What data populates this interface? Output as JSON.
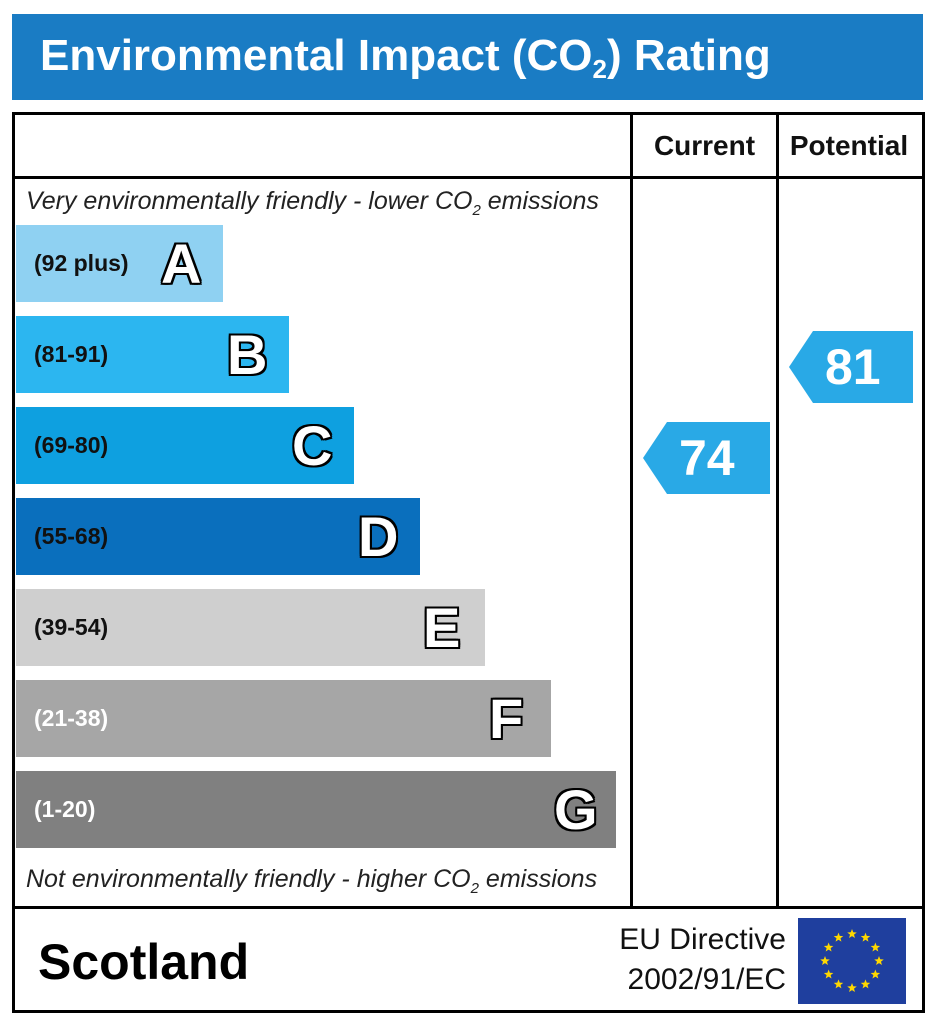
{
  "header": {
    "title_pre": "Environmental Impact (CO",
    "title_sub": "2",
    "title_post": ") Rating"
  },
  "columns": {
    "current": "Current",
    "potential": "Potential"
  },
  "notes": {
    "top_pre": "Very environmentally friendly - lower CO",
    "top_sub": "2",
    "top_post": " emissions",
    "bottom_pre": "Not environmentally friendly - higher CO",
    "bottom_sub": "2",
    "bottom_post": " emissions"
  },
  "chart_data": {
    "type": "bar",
    "categories": [
      "A",
      "B",
      "C",
      "D",
      "E",
      "F",
      "G"
    ],
    "ranges": [
      "(92 plus)",
      "(81-91)",
      "(69-80)",
      "(55-68)",
      "(39-54)",
      "(21-38)",
      "(1-20)"
    ],
    "band_colors": [
      "#8fd1f2",
      "#2cb6f0",
      "#0ea0e0",
      "#0a6fbd",
      "#cfcfcf",
      "#a6a6a6",
      "#808080"
    ],
    "range_text_colors": [
      "#111111",
      "#111111",
      "#111111",
      "#111111",
      "#111111",
      "#ffffff",
      "#ffffff"
    ],
    "current": {
      "value": 74,
      "band": "C",
      "color": "#29a9e6"
    },
    "potential": {
      "value": 81,
      "band": "B",
      "color": "#29a9e6"
    }
  },
  "footer": {
    "region": "Scotland",
    "directive_line1": "EU Directive",
    "directive_line2": "2002/91/EC",
    "flag_color": "#1f3f9e",
    "star_color": "#ffd800"
  }
}
